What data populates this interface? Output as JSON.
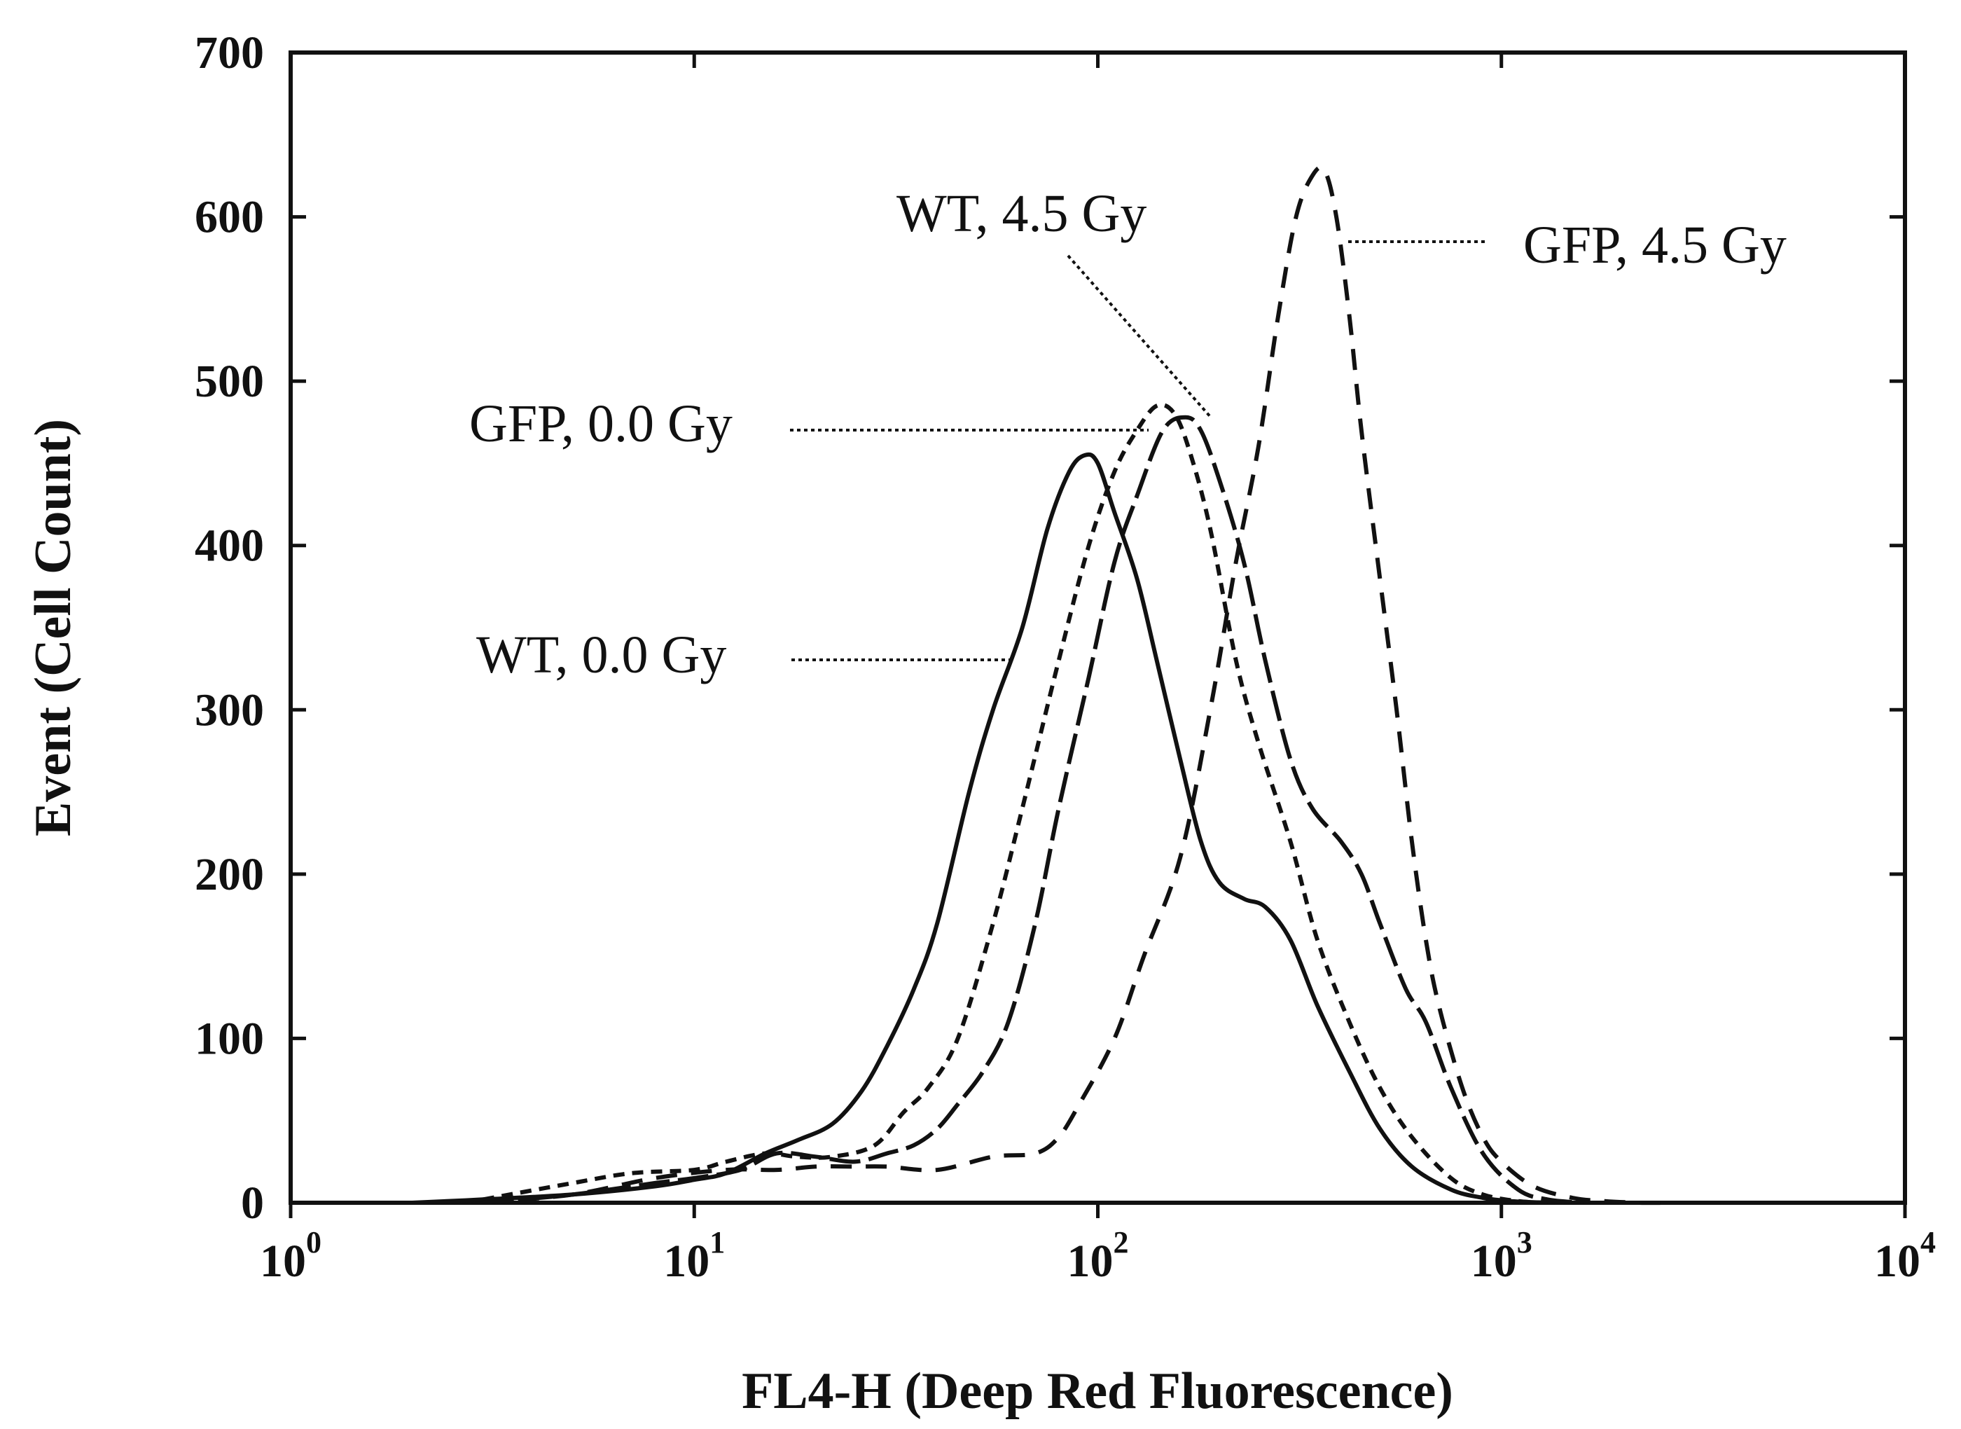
{
  "chart_data": {
    "type": "line",
    "title": "",
    "xlabel": "FL4-H (Deep Red Fluorescence)",
    "ylabel": "Event (Cell Count)",
    "xscale": "log",
    "xlim": [
      1,
      10000
    ],
    "ylim": [
      0,
      700
    ],
    "grid": false,
    "legend": "none",
    "x_ticks": [
      {
        "base": "10",
        "exp": "0",
        "value": 1
      },
      {
        "base": "10",
        "exp": "1",
        "value": 10
      },
      {
        "base": "10",
        "exp": "2",
        "value": 100
      },
      {
        "base": "10",
        "exp": "3",
        "value": 1000
      },
      {
        "base": "10",
        "exp": "4",
        "value": 10000
      }
    ],
    "y_ticks": [
      "0",
      "100",
      "200",
      "300",
      "400",
      "500",
      "600",
      "700"
    ],
    "y_tick_values": [
      0,
      100,
      200,
      300,
      400,
      500,
      600,
      700
    ],
    "series": [
      {
        "name": "WT, 0.0 Gy",
        "style": "solid",
        "x": [
          2,
          3,
          5,
          8,
          10,
          12,
          15,
          18,
          22,
          26,
          30,
          35,
          40,
          48,
          55,
          65,
          75,
          85,
          93,
          100,
          110,
          125,
          140,
          160,
          180,
          200,
          230,
          260,
          300,
          350,
          420,
          500,
          600,
          750,
          900,
          1050,
          1300
        ],
        "y": [
          0,
          2,
          5,
          10,
          14,
          18,
          30,
          38,
          48,
          68,
          95,
          130,
          170,
          250,
          300,
          350,
          410,
          445,
          455,
          450,
          420,
          380,
          330,
          270,
          220,
          195,
          185,
          180,
          160,
          120,
          80,
          45,
          22,
          8,
          3,
          1,
          0
        ]
      },
      {
        "name": "GFP, 0.0 Gy",
        "style": "short-dash",
        "x": [
          3,
          5,
          7,
          10,
          12,
          15,
          18,
          22,
          28,
          33,
          38,
          45,
          55,
          65,
          80,
          95,
          110,
          125,
          140,
          155,
          170,
          190,
          220,
          250,
          300,
          350,
          420,
          500,
          600,
          750,
          900,
          1100,
          1300
        ],
        "y": [
          2,
          12,
          18,
          20,
          25,
          30,
          28,
          28,
          35,
          55,
          70,
          100,
          170,
          240,
          330,
          400,
          445,
          470,
          485,
          480,
          455,
          410,
          330,
          280,
          220,
          160,
          110,
          70,
          40,
          15,
          5,
          1,
          0
        ]
      },
      {
        "name": "WT, 4.5 Gy",
        "style": "long-dash",
        "x": [
          3,
          5,
          8,
          10,
          13,
          16,
          20,
          25,
          30,
          35,
          40,
          45,
          52,
          60,
          70,
          80,
          95,
          110,
          125,
          145,
          165,
          180,
          200,
          230,
          260,
          300,
          340,
          400,
          450,
          500,
          580,
          650,
          750,
          900,
          1100,
          1300,
          1600
        ],
        "y": [
          0,
          5,
          12,
          15,
          20,
          30,
          28,
          25,
          30,
          35,
          45,
          60,
          80,
          110,
          170,
          240,
          320,
          390,
          430,
          470,
          478,
          470,
          440,
          390,
          330,
          270,
          240,
          220,
          200,
          170,
          130,
          110,
          70,
          30,
          8,
          2,
          0
        ]
      },
      {
        "name": "GFP, 4.5 Gy",
        "style": "dash",
        "x": [
          3,
          5,
          8,
          12,
          16,
          20,
          25,
          30,
          40,
          55,
          70,
          80,
          90,
          110,
          130,
          160,
          190,
          220,
          250,
          280,
          310,
          340,
          365,
          390,
          420,
          450,
          500,
          550,
          600,
          650,
          700,
          800,
          900,
          1000,
          1200,
          1500,
          1800,
          2200,
          2600
        ],
        "y": [
          0,
          5,
          15,
          20,
          20,
          22,
          22,
          22,
          20,
          28,
          30,
          40,
          60,
          100,
          150,
          210,
          300,
          390,
          460,
          540,
          600,
          625,
          628,
          600,
          540,
          470,
          380,
          300,
          220,
          160,
          120,
          70,
          40,
          25,
          10,
          3,
          1,
          0,
          0
        ]
      }
    ],
    "annotations": [
      {
        "text": "GFP, 4.5 Gy",
        "target_series": "GFP, 4.5 Gy"
      },
      {
        "text": "WT, 4.5 Gy",
        "target_series": "WT, 4.5 Gy"
      },
      {
        "text": "GFP, 0.0 Gy",
        "target_series": "GFP, 0.0 Gy"
      },
      {
        "text": "WT, 0.0 Gy",
        "target_series": "WT, 0.0 Gy"
      }
    ]
  }
}
